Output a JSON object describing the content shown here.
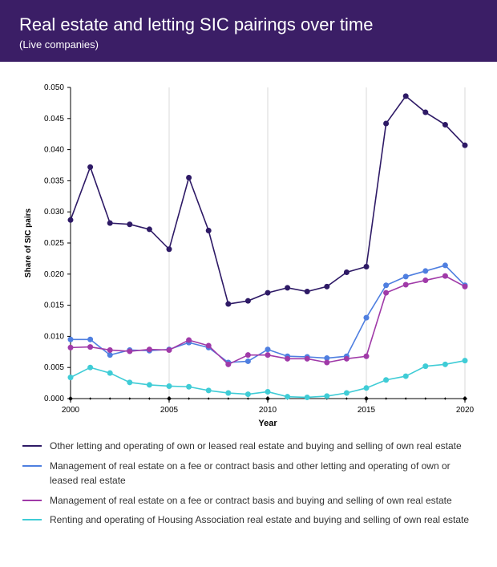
{
  "header": {
    "title": "Real estate and letting SIC pairings over time",
    "subtitle": "(Live companies)",
    "background_color": "#3b1e66",
    "text_color": "#ffffff"
  },
  "chart": {
    "type": "line",
    "background_color": "#ffffff",
    "grid_color": "#d8d8d8",
    "axis_color": "#000000",
    "x": {
      "label": "Year",
      "values": [
        2000,
        2001,
        2002,
        2003,
        2004,
        2005,
        2006,
        2007,
        2008,
        2009,
        2010,
        2011,
        2012,
        2013,
        2014,
        2015,
        2016,
        2017,
        2018,
        2019,
        2020
      ],
      "ticks": [
        2000,
        2005,
        2010,
        2015,
        2020
      ],
      "xlim": [
        2000,
        2020
      ]
    },
    "y": {
      "label": "Share of SIC pairs",
      "ylim": [
        0.0,
        0.05
      ],
      "ticks": [
        0.0,
        0.005,
        0.01,
        0.015,
        0.02,
        0.025,
        0.03,
        0.035,
        0.04,
        0.045,
        0.05
      ]
    },
    "series": [
      {
        "name": "Other letting and operating of own or leased real estate and buying and selling of own real estate",
        "color": "#2e1a66",
        "marker": "circle",
        "marker_size": 3.5,
        "line_width": 1.6,
        "values": [
          0.0287,
          0.0372,
          0.0282,
          0.028,
          0.0272,
          0.024,
          0.0355,
          0.027,
          0.0152,
          0.0157,
          0.017,
          0.0178,
          0.0172,
          0.018,
          0.0203,
          0.0212,
          0.0442,
          0.0486,
          0.046,
          0.044,
          0.0407
        ]
      },
      {
        "name": "Management of real estate on a fee or contract basis and other letting and operating of own or leased real estate",
        "color": "#4f7fe0",
        "marker": "circle",
        "marker_size": 3.5,
        "line_width": 1.6,
        "values": [
          0.0095,
          0.0095,
          0.007,
          0.0078,
          0.0077,
          0.0079,
          0.009,
          0.0082,
          0.0058,
          0.006,
          0.0079,
          0.0068,
          0.0067,
          0.0065,
          0.0068,
          0.013,
          0.0182,
          0.0196,
          0.0205,
          0.0214,
          0.0182
        ]
      },
      {
        "name": "Management of real estate on a fee or contract basis and buying and selling of own real estate",
        "color": "#a03aa8",
        "marker": "circle",
        "marker_size": 3.5,
        "line_width": 1.6,
        "values": [
          0.0082,
          0.0083,
          0.0078,
          0.0076,
          0.0079,
          0.0078,
          0.0094,
          0.0085,
          0.0055,
          0.007,
          0.007,
          0.0064,
          0.0064,
          0.0058,
          0.0064,
          0.0068,
          0.017,
          0.0183,
          0.019,
          0.0197,
          0.018
        ]
      },
      {
        "name": "Renting and operating of Housing Association real estate and buying and selling of own real estate",
        "color": "#3fccd6",
        "marker": "circle",
        "marker_size": 3.5,
        "line_width": 1.6,
        "values": [
          0.0034,
          0.005,
          0.0041,
          0.0026,
          0.0022,
          0.002,
          0.0019,
          0.0013,
          0.0009,
          0.0007,
          0.0011,
          0.0003,
          0.0002,
          0.0004,
          0.0009,
          0.0017,
          0.003,
          0.0036,
          0.0052,
          0.0055,
          0.0061
        ]
      }
    ]
  },
  "legend": {
    "items": [
      {
        "label": "Other letting and operating of own or leased real estate and buying and selling of own real estate",
        "color": "#2e1a66"
      },
      {
        "label": "Management of real estate on a fee or contract basis and other letting and operating of own or leased real estate",
        "color": "#4f7fe0"
      },
      {
        "label": "Management of real estate on a fee or contract basis and buying and selling of own real estate",
        "color": "#a03aa8"
      },
      {
        "label": "Renting and operating of Housing Association real estate and buying and selling of own real estate",
        "color": "#3fccd6"
      }
    ]
  }
}
